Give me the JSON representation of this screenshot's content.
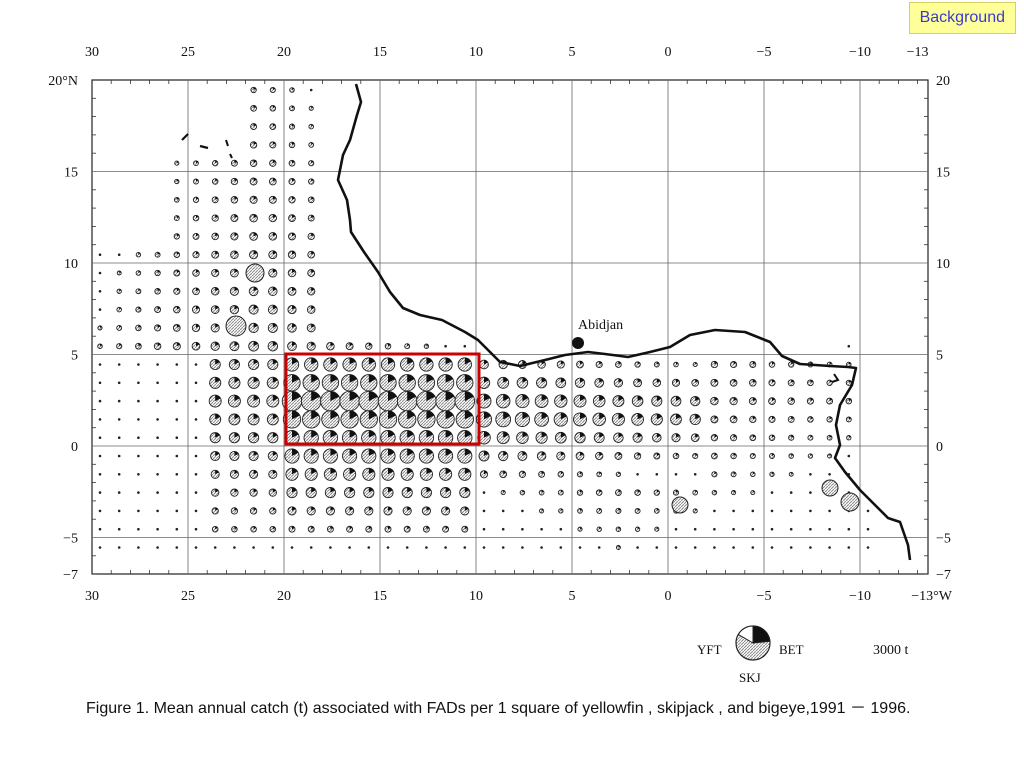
{
  "badge": {
    "label": "Background"
  },
  "figure": {
    "top_ticks": [
      "30",
      "25",
      "20",
      "15",
      "10",
      "5",
      "0",
      "−5",
      "−10",
      "−13"
    ],
    "bottom_ticks": [
      "30",
      "25",
      "20",
      "15",
      "10",
      "5",
      "0",
      "−5",
      "−10",
      "−13°W"
    ],
    "left_ticks": [
      "20°N",
      "15",
      "10",
      "5",
      "0",
      "−5",
      "−7"
    ],
    "right_ticks": [
      "20",
      "15",
      "10",
      "5",
      "0",
      "−5",
      "−7"
    ],
    "place_label": "Abidjan",
    "legend": {
      "yft_label": "YFT",
      "bet_label": "BET",
      "skj_label": "SKJ",
      "scale_label": "3000 t"
    },
    "colors": {
      "line": "#111111",
      "grid": "#555555",
      "highlight": "#cc0000",
      "hatch": "#9a9a9a"
    }
  },
  "caption": {
    "text": "Figure 1. Mean annual catch (t) associated with FADs per 1 square of yellowfin , skipjack , and bigeye,1991 － 1996."
  }
}
